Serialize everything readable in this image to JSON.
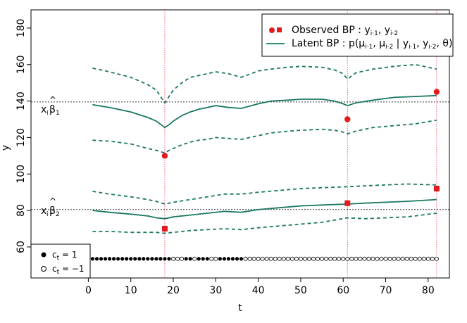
{
  "chart_data": {
    "type": "line",
    "xlabel": "t",
    "ylabel": "y",
    "xlim": [
      -13.5,
      85
    ],
    "ylim": [
      43,
      190
    ],
    "x_ticks": [
      0,
      10,
      20,
      30,
      40,
      50,
      60,
      70,
      80
    ],
    "y_ticks": [
      60,
      80,
      100,
      120,
      140,
      160,
      180
    ],
    "x_tick_labels": [
      "0",
      "10",
      "20",
      "30",
      "40",
      "50",
      "60",
      "70",
      "80"
    ],
    "y_tick_labels": [
      "60",
      "80",
      "100",
      "120",
      "140",
      "160",
      "180"
    ],
    "colors": {
      "latent": "#1a7862",
      "observed": "#e41a1c",
      "vline": "#e8474d",
      "hline": "#333333"
    },
    "hlines": [
      {
        "y": 139.5,
        "label_main": "x",
        "label_sub": "i",
        "label_beta": "β",
        "label_beta_sub": "1",
        "label_hat": "^"
      },
      {
        "y": 80.5,
        "label_main": "x",
        "label_sub": "i",
        "label_beta": "β",
        "label_beta_sub": "2",
        "label_hat": "^"
      }
    ],
    "vlines": [
      18,
      61,
      82
    ],
    "legend_top": {
      "position": "top-right",
      "observed_label": "Observed BP : y",
      "observed_sub_1": "i·1",
      "observed_sep": ", y",
      "observed_sub_2": "i·2",
      "latent_label_prefix": "Latent BP : p(μ",
      "latent_sub_1": "i·1",
      "latent_mid1": ", μ",
      "latent_sub_2": "i·2",
      "latent_mid2": " | y",
      "latent_sub_3": "i·1",
      "latent_mid3": ", y",
      "latent_sub_4": "i·2",
      "latent_end": ", θ)"
    },
    "legend_bottom": {
      "position": "bottom-left",
      "filled_prefix": "c",
      "filled_sub": "t",
      "filled_suffix": " = 1",
      "open_prefix": "c",
      "open_sub": "t",
      "open_suffix": " = −1"
    },
    "series": [
      {
        "kind": "mean-1",
        "x": [
          1,
          5,
          10,
          14,
          16,
          18,
          19,
          20,
          22,
          24,
          26,
          28,
          30,
          33,
          36,
          40,
          43,
          47,
          50,
          55,
          58,
          60,
          61,
          63,
          67,
          72,
          77,
          82
        ],
        "values": [
          138,
          136.5,
          134,
          131,
          129,
          125.5,
          127,
          129,
          132,
          134,
          135.5,
          136.5,
          137.5,
          136.5,
          136,
          138.5,
          140,
          140.5,
          141,
          141,
          140,
          138.5,
          137.5,
          139,
          140.5,
          142,
          142.5,
          143
        ]
      },
      {
        "kind": "upper-1",
        "x": [
          1,
          5,
          10,
          14,
          16,
          18,
          19,
          20,
          22,
          24,
          26,
          28,
          30,
          33,
          36,
          40,
          43,
          47,
          50,
          55,
          58,
          60,
          61,
          63,
          67,
          72,
          77,
          82
        ],
        "values": [
          158,
          156,
          153,
          149,
          146,
          139,
          142.5,
          146,
          150,
          153,
          154,
          155,
          156,
          155,
          153,
          156.5,
          157.5,
          158.5,
          159,
          158.5,
          157,
          155,
          152,
          155.5,
          157.5,
          159,
          160,
          157.5
        ]
      },
      {
        "kind": "lower-1",
        "x": [
          1,
          5,
          10,
          14,
          16,
          18,
          19,
          20,
          22,
          24,
          26,
          28,
          30,
          33,
          36,
          40,
          43,
          47,
          50,
          55,
          58,
          60,
          61,
          63,
          67,
          72,
          77,
          82
        ],
        "values": [
          118.5,
          118,
          116.5,
          114,
          113,
          111.5,
          113,
          114,
          116,
          117.5,
          118.5,
          119,
          120,
          119.5,
          119,
          121,
          122.5,
          123.5,
          124,
          124.5,
          124,
          123,
          122,
          123.5,
          125.5,
          126.5,
          127.5,
          129.5
        ]
      },
      {
        "kind": "mean-2",
        "x": [
          1,
          5,
          10,
          14,
          16,
          18,
          20,
          24,
          28,
          32,
          36,
          40,
          45,
          50,
          55,
          61,
          65,
          70,
          75,
          82
        ],
        "values": [
          80,
          79,
          78,
          77,
          76,
          75.5,
          76.5,
          77.5,
          78.5,
          79.5,
          79,
          80.5,
          81.5,
          82.5,
          83,
          83.5,
          84,
          84.5,
          85,
          86
        ]
      },
      {
        "kind": "upper-2",
        "x": [
          1,
          5,
          10,
          14,
          16,
          18,
          20,
          24,
          28,
          32,
          36,
          40,
          45,
          50,
          55,
          61,
          65,
          70,
          75,
          82
        ],
        "values": [
          90.5,
          89,
          87.5,
          86,
          85,
          83.5,
          84.5,
          86,
          87.5,
          89,
          89,
          90,
          91,
          92,
          92.5,
          93,
          93.5,
          94,
          94.5,
          94
        ]
      },
      {
        "kind": "lower-2",
        "x": [
          1,
          5,
          10,
          14,
          16,
          18,
          20,
          24,
          28,
          32,
          36,
          40,
          45,
          50,
          55,
          61,
          65,
          70,
          75,
          82
        ],
        "values": [
          68.5,
          68.5,
          68,
          68,
          68,
          67.5,
          68,
          69,
          69.5,
          70,
          69.5,
          70.5,
          71.5,
          72.5,
          73.5,
          76,
          75.5,
          76,
          76.5,
          78.5
        ]
      }
    ],
    "observed_1": {
      "x": [
        18,
        61,
        82
      ],
      "values": [
        110,
        130,
        145
      ]
    },
    "observed_2": {
      "x": [
        18,
        61,
        82
      ],
      "values": [
        70,
        84,
        92
      ]
    },
    "state_points": {
      "y": 53.5,
      "filled_x": [
        1,
        2,
        3,
        4,
        5,
        6,
        7,
        8,
        9,
        10,
        11,
        12,
        13,
        14,
        15,
        16,
        17,
        18,
        19,
        23,
        24,
        26,
        27,
        28,
        31,
        32,
        33,
        34,
        35,
        36
      ],
      "open_x": [
        20,
        21,
        22,
        25,
        29,
        30,
        37,
        38,
        39,
        40,
        41,
        42,
        43,
        44,
        45,
        46,
        47,
        48,
        49,
        50,
        51,
        52,
        53,
        54,
        55,
        56,
        57,
        58,
        59,
        60,
        61,
        62,
        63,
        64,
        65,
        66,
        67,
        68,
        69,
        70,
        71,
        72,
        73,
        74,
        75,
        76,
        77,
        78,
        79,
        80,
        81,
        82
      ]
    }
  }
}
